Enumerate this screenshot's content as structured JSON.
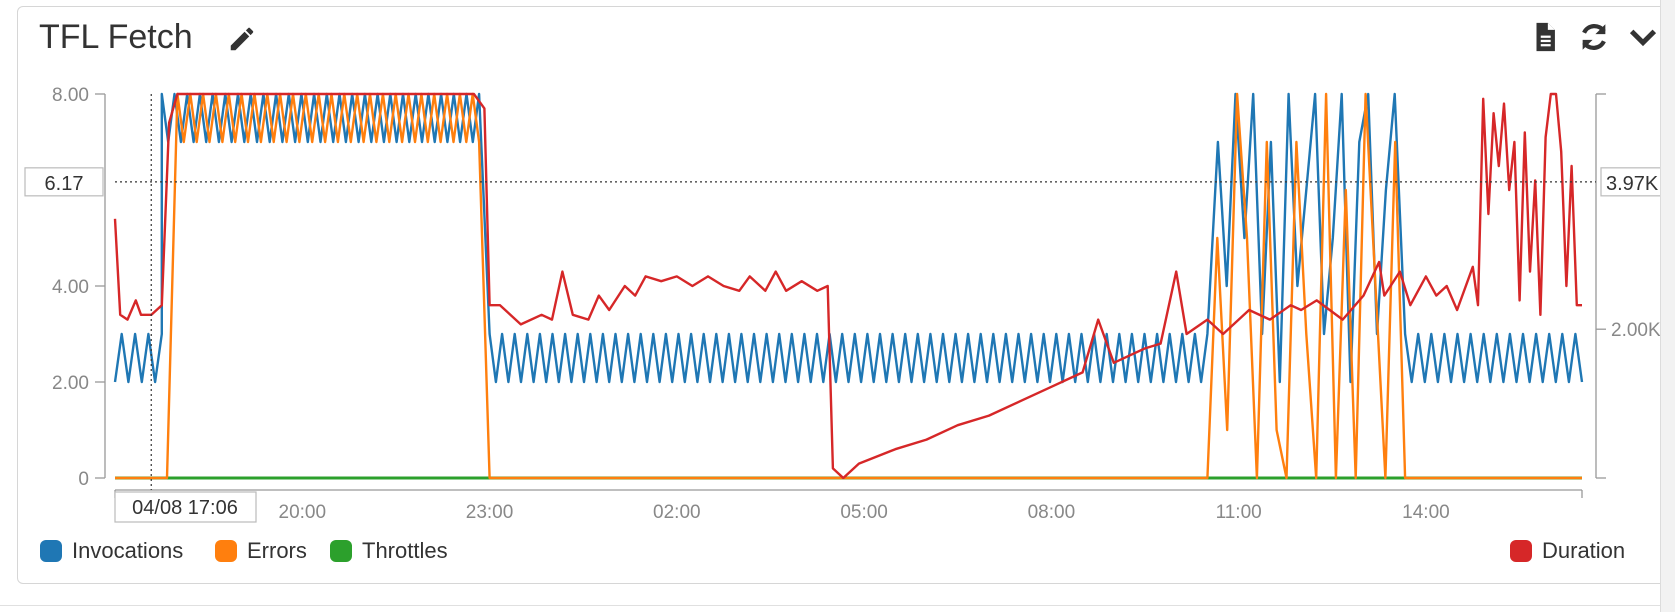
{
  "widget": {
    "title": "TFL Fetch",
    "icons": [
      "pencil-icon",
      "document-icon",
      "refresh-icon",
      "chevron-down-icon"
    ]
  },
  "colors": {
    "invocations": "#1f77b4",
    "errors": "#ff7f0e",
    "throttles": "#2ca02c",
    "duration": "#d62728"
  },
  "crosshair": {
    "left_value": "6.17",
    "right_value": "3.97K",
    "time": "04/08 17:06"
  },
  "chart_data": {
    "type": "line",
    "x_start": "04/08 17:00",
    "x_end": "04/09 16:30",
    "x_tick_labels": [
      "20:00",
      "23:00",
      "02:00",
      "05:00",
      "08:00",
      "11:00",
      "14:00"
    ],
    "y_left": {
      "ylim": [
        0,
        8
      ],
      "ticks": [
        "0",
        "2.00",
        "4.00",
        "8.00"
      ]
    },
    "y_right": {
      "ticks": [
        "2.00K"
      ]
    },
    "grid": false,
    "legend_placement": "bottom",
    "series": [
      {
        "name": "Invocations",
        "axis": "left",
        "pattern": "alternate",
        "segments": [
          {
            "start": "04/08 17:00",
            "end": "04/08 17:45",
            "values": [
              2,
              3
            ]
          },
          {
            "start": "04/08 17:45",
            "end": "04/08 22:50",
            "values": [
              8,
              7
            ]
          },
          {
            "start": "04/08 23:00",
            "end": "04/09 10:30",
            "values": [
              3,
              2
            ]
          },
          {
            "start": "04/09 10:40",
            "end": "04/09 13:30",
            "values": [
              7,
              4,
              8,
              5,
              8,
              3,
              7,
              2,
              8,
              4,
              6,
              8,
              3,
              5,
              8,
              2,
              7,
              8,
              3,
              6,
              8
            ]
          },
          {
            "start": "04/09 13:40",
            "end": "04/09 16:30",
            "values": [
              3,
              2
            ]
          }
        ]
      },
      {
        "name": "Errors",
        "axis": "left",
        "pattern": "alternate",
        "segments": [
          {
            "start": "04/08 17:00",
            "end": "04/08 17:50",
            "values": [
              0,
              0
            ]
          },
          {
            "start": "04/08 18:00",
            "end": "04/08 22:50",
            "values": [
              8,
              7
            ]
          },
          {
            "start": "04/08 23:00",
            "end": "04/09 10:25",
            "values": [
              0,
              0
            ]
          },
          {
            "start": "04/09 10:30",
            "end": "04/09 13:40",
            "values": [
              0,
              5,
              1,
              8,
              5,
              0,
              7,
              1,
              0,
              7,
              3,
              0,
              8,
              0,
              6,
              0,
              8,
              4,
              0,
              7,
              0
            ]
          },
          {
            "start": "04/09 13:40",
            "end": "04/09 16:30",
            "values": [
              0,
              0
            ]
          }
        ]
      },
      {
        "name": "Throttles",
        "axis": "left",
        "pattern": "alternate",
        "segments": [
          {
            "start": "04/08 17:00",
            "end": "04/09 16:30",
            "values": [
              0,
              0
            ]
          }
        ]
      },
      {
        "name": "Duration",
        "axis": "right",
        "pattern": "points",
        "points": [
          [
            "04/08 17:00",
            5.4
          ],
          [
            "04/08 17:05",
            3.4
          ],
          [
            "04/08 17:12",
            3.3
          ],
          [
            "04/08 17:20",
            3.7
          ],
          [
            "04/08 17:25",
            3.4
          ],
          [
            "04/08 17:35",
            3.4
          ],
          [
            "04/08 17:45",
            3.6
          ],
          [
            "04/08 17:52",
            7.4
          ],
          [
            "04/08 18:00",
            8.0
          ],
          [
            "04/08 22:45",
            8.0
          ],
          [
            "04/08 22:55",
            7.7
          ],
          [
            "04/08 23:00",
            3.6
          ],
          [
            "04/08 23:10",
            3.6
          ],
          [
            "04/08 23:30",
            3.2
          ],
          [
            "04/08 23:50",
            3.4
          ],
          [
            "04/09 00:00",
            3.3
          ],
          [
            "04/09 00:10",
            4.3
          ],
          [
            "04/09 00:20",
            3.4
          ],
          [
            "04/09 00:35",
            3.3
          ],
          [
            "04/09 00:45",
            3.8
          ],
          [
            "04/09 00:55",
            3.5
          ],
          [
            "04/09 01:10",
            4.0
          ],
          [
            "04/09 01:20",
            3.8
          ],
          [
            "04/09 01:30",
            4.2
          ],
          [
            "04/09 01:45",
            4.1
          ],
          [
            "04/09 02:00",
            4.2
          ],
          [
            "04/09 02:15",
            4.0
          ],
          [
            "04/09 02:30",
            4.2
          ],
          [
            "04/09 02:45",
            4.0
          ],
          [
            "04/09 03:00",
            3.9
          ],
          [
            "04/09 03:10",
            4.2
          ],
          [
            "04/09 03:25",
            3.9
          ],
          [
            "04/09 03:35",
            4.3
          ],
          [
            "04/09 03:45",
            3.9
          ],
          [
            "04/09 04:00",
            4.1
          ],
          [
            "04/09 04:15",
            3.9
          ],
          [
            "04/09 04:25",
            4.0
          ],
          [
            "04/09 04:30",
            0.2
          ],
          [
            "04/09 04:40",
            0.0
          ],
          [
            "04/09 04:55",
            0.3
          ],
          [
            "04/09 05:30",
            0.6
          ],
          [
            "04/09 06:00",
            0.8
          ],
          [
            "04/09 06:30",
            1.1
          ],
          [
            "04/09 07:00",
            1.3
          ],
          [
            "04/09 07:30",
            1.6
          ],
          [
            "04/09 08:00",
            1.9
          ],
          [
            "04/09 08:30",
            2.2
          ],
          [
            "04/09 08:45",
            3.3
          ],
          [
            "04/09 09:00",
            2.4
          ],
          [
            "04/09 09:30",
            2.7
          ],
          [
            "04/09 09:45",
            2.8
          ],
          [
            "04/09 10:00",
            4.3
          ],
          [
            "04/09 10:10",
            3.0
          ],
          [
            "04/09 10:30",
            3.3
          ],
          [
            "04/09 10:45",
            3.0
          ],
          [
            "04/09 11:10",
            3.5
          ],
          [
            "04/09 11:30",
            3.3
          ],
          [
            "04/09 11:50",
            3.6
          ],
          [
            "04/09 12:00",
            3.5
          ],
          [
            "04/09 12:15",
            3.7
          ],
          [
            "04/09 12:40",
            3.3
          ],
          [
            "04/09 13:00",
            3.8
          ],
          [
            "04/09 13:15",
            4.5
          ],
          [
            "04/09 13:20",
            3.8
          ],
          [
            "04/09 13:35",
            4.3
          ],
          [
            "04/09 13:45",
            3.6
          ],
          [
            "04/09 14:00",
            4.2
          ],
          [
            "04/09 14:10",
            3.8
          ],
          [
            "04/09 14:20",
            4.0
          ],
          [
            "04/09 14:30",
            3.5
          ],
          [
            "04/09 14:45",
            4.4
          ],
          [
            "04/09 14:50",
            3.6
          ],
          [
            "04/09 14:55",
            7.9
          ],
          [
            "04/09 15:00",
            5.5
          ],
          [
            "04/09 15:05",
            7.6
          ],
          [
            "04/09 15:10",
            6.5
          ],
          [
            "04/09 15:15",
            7.8
          ],
          [
            "04/09 15:20",
            6.0
          ],
          [
            "04/09 15:25",
            7.0
          ],
          [
            "04/09 15:30",
            3.7
          ],
          [
            "04/09 15:35",
            7.2
          ],
          [
            "04/09 15:40",
            4.3
          ],
          [
            "04/09 15:45",
            6.2
          ],
          [
            "04/09 15:50",
            3.4
          ],
          [
            "04/09 15:55",
            7.1
          ],
          [
            "04/09 16:00",
            8.0
          ],
          [
            "04/09 16:05",
            8.0
          ],
          [
            "04/09 16:10",
            6.8
          ],
          [
            "04/09 16:15",
            4.0
          ],
          [
            "04/09 16:20",
            6.5
          ],
          [
            "04/09 16:25",
            3.6
          ],
          [
            "04/09 16:30",
            3.6
          ]
        ]
      }
    ]
  },
  "legend": {
    "left": [
      {
        "label": "Invocations",
        "color": "#1f77b4"
      },
      {
        "label": "Errors",
        "color": "#ff7f0e"
      },
      {
        "label": "Throttles",
        "color": "#2ca02c"
      }
    ],
    "right": [
      {
        "label": "Duration",
        "color": "#d62728"
      }
    ]
  }
}
